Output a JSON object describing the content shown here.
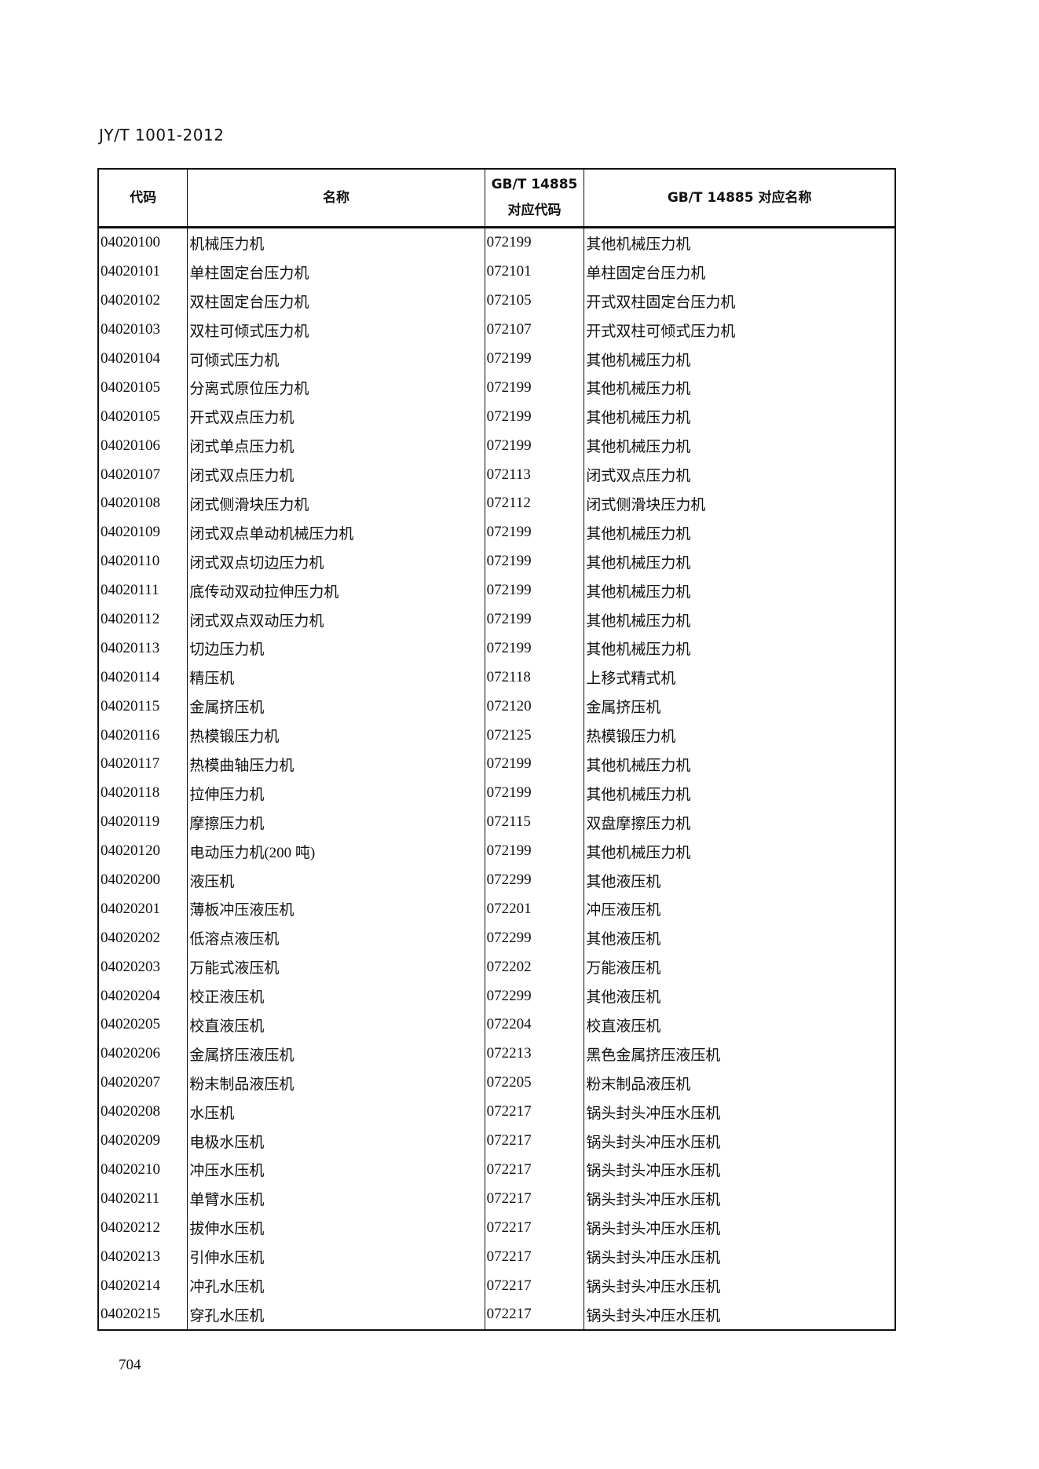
{
  "header": {
    "doc_id": "JY/T 1001-2012"
  },
  "table": {
    "columns": [
      "代码",
      "名称",
      "GB/T 14885\n对应代码",
      "GB/T 14885 对应名称"
    ],
    "column_lines": {
      "c3_line1": "GB/T 14885",
      "c3_line2": "对应代码"
    },
    "rows": [
      [
        "04020100",
        "机械压力机",
        "072199",
        "其他机械压力机"
      ],
      [
        "04020101",
        "单柱固定台压力机",
        "072101",
        "单柱固定台压力机"
      ],
      [
        "04020102",
        "双柱固定台压力机",
        "072105",
        "开式双柱固定台压力机"
      ],
      [
        "04020103",
        "双柱可倾式压力机",
        "072107",
        "开式双柱可倾式压力机"
      ],
      [
        "04020104",
        "可倾式压力机",
        "072199",
        "其他机械压力机"
      ],
      [
        "04020105",
        "分离式原位压力机",
        "072199",
        "其他机械压力机"
      ],
      [
        "04020105",
        "开式双点压力机",
        "072199",
        "其他机械压力机"
      ],
      [
        "04020106",
        "闭式单点压力机",
        "072199",
        "其他机械压力机"
      ],
      [
        "04020107",
        "闭式双点压力机",
        "072113",
        "闭式双点压力机"
      ],
      [
        "04020108",
        "闭式侧滑块压力机",
        "072112",
        "闭式侧滑块压力机"
      ],
      [
        "04020109",
        "闭式双点单动机械压力机",
        "072199",
        "其他机械压力机"
      ],
      [
        "04020110",
        "闭式双点切边压力机",
        "072199",
        "其他机械压力机"
      ],
      [
        "04020111",
        "底传动双动拉伸压力机",
        "072199",
        "其他机械压力机"
      ],
      [
        "04020112",
        "闭式双点双动压力机",
        "072199",
        "其他机械压力机"
      ],
      [
        "04020113",
        "切边压力机",
        "072199",
        "其他机械压力机"
      ],
      [
        "04020114",
        "精压机",
        "072118",
        "上移式精式机"
      ],
      [
        "04020115",
        "金属挤压机",
        "072120",
        "金属挤压机"
      ],
      [
        "04020116",
        "热模锻压力机",
        "072125",
        "热模锻压力机"
      ],
      [
        "04020117",
        "热模曲轴压力机",
        "072199",
        "其他机械压力机"
      ],
      [
        "04020118",
        "拉伸压力机",
        "072199",
        "其他机械压力机"
      ],
      [
        "04020119",
        "摩擦压力机",
        "072115",
        "双盘摩擦压力机"
      ],
      [
        "04020120",
        "电动压力机(200 吨)",
        "072199",
        "其他机械压力机"
      ],
      [
        "04020200",
        "液压机",
        "072299",
        "其他液压机"
      ],
      [
        "04020201",
        "薄板冲压液压机",
        "072201",
        "冲压液压机"
      ],
      [
        "04020202",
        "低溶点液压机",
        "072299",
        "其他液压机"
      ],
      [
        "04020203",
        "万能式液压机",
        "072202",
        "万能液压机"
      ],
      [
        "04020204",
        "校正液压机",
        "072299",
        "其他液压机"
      ],
      [
        "04020205",
        "校直液压机",
        "072204",
        "校直液压机"
      ],
      [
        "04020206",
        "金属挤压液压机",
        "072213",
        "黑色金属挤压液压机"
      ],
      [
        "04020207",
        "粉末制品液压机",
        "072205",
        "粉末制品液压机"
      ],
      [
        "04020208",
        "水压机",
        "072217",
        "锅头封头冲压水压机"
      ],
      [
        "04020209",
        "电极水压机",
        "072217",
        "锅头封头冲压水压机"
      ],
      [
        "04020210",
        "冲压水压机",
        "072217",
        "锅头封头冲压水压机"
      ],
      [
        "04020211",
        "单臂水压机",
        "072217",
        "锅头封头冲压水压机"
      ],
      [
        "04020212",
        "拔伸水压机",
        "072217",
        "锅头封头冲压水压机"
      ],
      [
        "04020213",
        "引伸水压机",
        "072217",
        "锅头封头冲压水压机"
      ],
      [
        "04020214",
        "冲孔水压机",
        "072217",
        "锅头封头冲压水压机"
      ],
      [
        "04020215",
        "穿孔水压机",
        "072217",
        "锅头封头冲压水压机"
      ]
    ]
  },
  "footer": {
    "page_number": "704"
  }
}
